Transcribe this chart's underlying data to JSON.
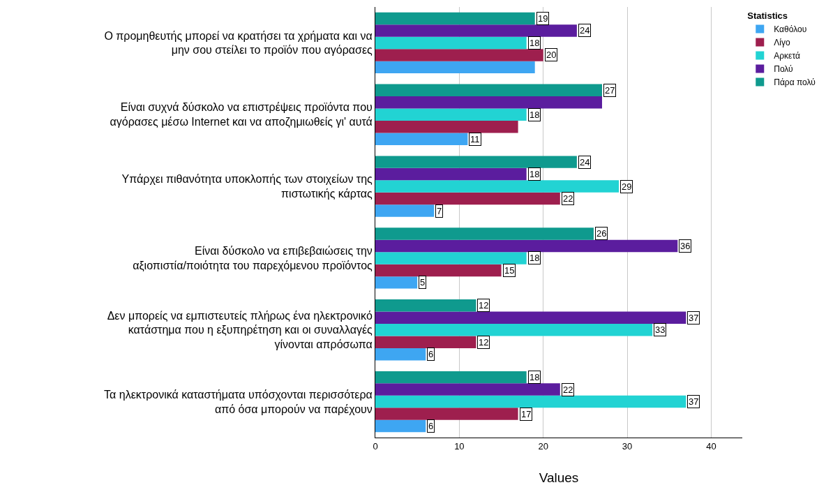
{
  "chart_data": {
    "type": "bar",
    "orientation": "horizontal",
    "xlabel": "Values",
    "legend_title": "Statistics",
    "legend": "top right",
    "grid": "x",
    "xlim": [
      0,
      43.7
    ],
    "xticks": [
      0,
      10,
      20,
      30,
      40
    ],
    "categories": [
      "Ο προμηθευτής μπορεί να κρατήσει τα χρήματα και να μην σου στείλει το προϊόν που αγόρασες",
      "Είναι συχνά δύσκολο να επιστρέψεις προϊόντα που αγόρασες μέσω Internet και να αποζημιωθείς γι' αυτά",
      "Υπάρχει πιθανότητα υποκλοπής των στοιχείων της πιστωτικής κάρτας",
      "Είναι δύσκολο να επιβεβαιώσεις την αξιοπιστία/ποιότητα του παρεχόμενου προϊόντος",
      "Δεν μπορείς να εμπιστευτείς πλήρως ένα ηλεκτρονικό κατάστημα που η εξυπηρέτηση και οι συναλλαγές γίνονται απρόσωπα",
      "Τα ηλεκτρονικά καταστήματα υπόσχονται περισσότερα από όσα μπορούν να παρέχουν"
    ],
    "series": [
      {
        "name": "Καθόλου",
        "color": "#3ea6f2",
        "values": [
          19,
          11,
          7,
          5,
          6,
          6
        ],
        "value_labels": [
          null,
          "11",
          "7",
          "5",
          "6",
          "6"
        ]
      },
      {
        "name": "Λίγο",
        "color": "#9e1f4e",
        "values": [
          20,
          17,
          22,
          15,
          12,
          17
        ],
        "value_labels": [
          "20",
          null,
          "22",
          "15",
          "12",
          "17"
        ]
      },
      {
        "name": "Αρκετά",
        "color": "#22d3d3",
        "values": [
          18,
          18,
          29,
          18,
          33,
          37
        ],
        "value_labels": [
          "18",
          "18",
          "29",
          "18",
          "33",
          "37"
        ]
      },
      {
        "name": "Πολύ",
        "color": "#5b1d9e",
        "values": [
          24,
          27,
          18,
          36,
          37,
          22
        ],
        "value_labels": [
          "24",
          null,
          "18",
          "36",
          "37",
          "22"
        ]
      },
      {
        "name": "Πάρα πολύ",
        "color": "#0f9a8e",
        "values": [
          19,
          27,
          24,
          26,
          12,
          18
        ],
        "value_labels": [
          "19",
          "27",
          "24",
          "26",
          "12",
          "18"
        ]
      }
    ]
  }
}
